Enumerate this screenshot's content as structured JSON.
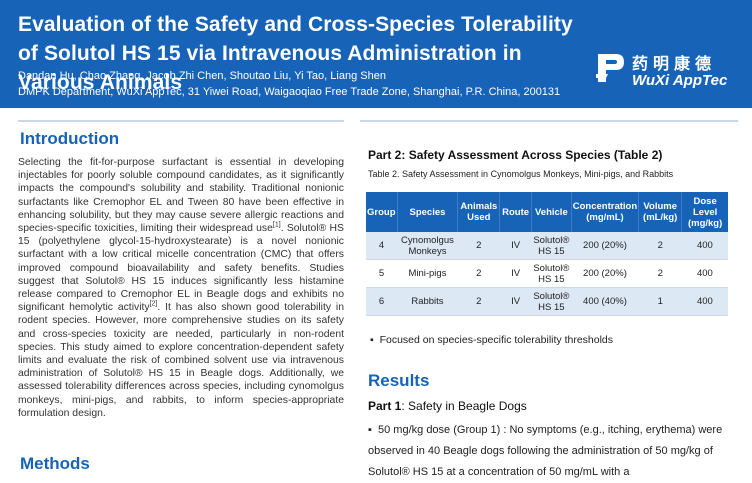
{
  "header": {
    "title": "Evaluation of the Safety and Cross-Species Tolerability of Solutol HS 15 via Intravenous Administration in Various Animals",
    "authors": "Dandan Hu, Chao Zhang, Jacob Zhi Chen, Shoutao Liu, Yi Tao, Liang Shen",
    "affiliation": "DMPK Department, WuXi AppTec, 31 Yiwei Road, Waigaoqiao Free Trade Zone, Shanghai, P.R. China, 200131",
    "logo_cn": "药明康德",
    "logo_en": "WuXi AppTec"
  },
  "introduction": {
    "heading": "Introduction",
    "p1": "Selecting the fit-for-purpose surfactant is essential in developing injectables for poorly soluble compound candidates, as it significantly impacts the compound's solubility and stability. Traditional nonionic surfactants like Cremophor EL and Tween 80 have been effective in enhancing solubility, but they may cause severe allergic reactions and species-specific toxicities, limiting their widespread use",
    "ref1": "[1]",
    "p2": ". Solutol® HS 15 (polyethylene glycol-15-hydroxystearate) is a novel nonionic surfactant with a low critical micelle concentration (CMC) that offers improved compound bioavailability and safety benefits. Studies suggest that Solutol® HS 15 induces significantly less histamine release compared to Cremophor EL in Beagle dogs and exhibits no significant hemolytic activity",
    "ref2": "[2]",
    "p3": ". It has also shown good tolerability in rodent species. However, more comprehensive studies on its safety and cross-species toxicity are needed, particularly in non-rodent species. This study aimed to explore concentration-dependent safety limits and evaluate the risk of combined solvent use via intravenous administration of Solutol® HS 15 in Beagle dogs. Additionally, we assessed tolerability differences across species, including cynomolgus monkeys, mini-pigs, and rabbits, to inform species-appropriate formulation design."
  },
  "methods": {
    "heading": "Methods"
  },
  "part2": {
    "label": "Part 2",
    "title": ": Safety Assessment Across Species (Table 2)",
    "caption": "Table 2. Safety Assessment in Cynomolgus Monkeys, Mini-pigs, and Rabbits",
    "columns": [
      "Group",
      "Species",
      "Animals Used",
      "Route",
      "Vehicle",
      "Concentration (mg/mL)",
      "Volume (mL/kg)",
      "Dose Level (mg/kg)"
    ],
    "rows": [
      [
        "4",
        "Cynomolgus Monkeys",
        "2",
        "IV",
        "Solutol® HS 15",
        "200 (20%)",
        "2",
        "400"
      ],
      [
        "5",
        "Mini-pigs",
        "2",
        "IV",
        "Solutol® HS 15",
        "200 (20%)",
        "2",
        "400"
      ],
      [
        "6",
        "Rabbits",
        "2",
        "IV",
        "Solutol® HS 15",
        "400 (40%)",
        "1",
        "400"
      ]
    ],
    "bullet": "Focused on species-specific tolerability thresholds"
  },
  "results": {
    "heading": "Results",
    "part1_label": "Part 1",
    "part1_title": ": Safety in Beagle Dogs",
    "bullet": "50 mg/kg dose (Group 1) : No symptoms (e.g., itching, erythema) were observed in 40 Beagle dogs following the administration of 50 mg/kg of Solutol® HS 15 at a concentration of 50 mg/mL with a"
  }
}
